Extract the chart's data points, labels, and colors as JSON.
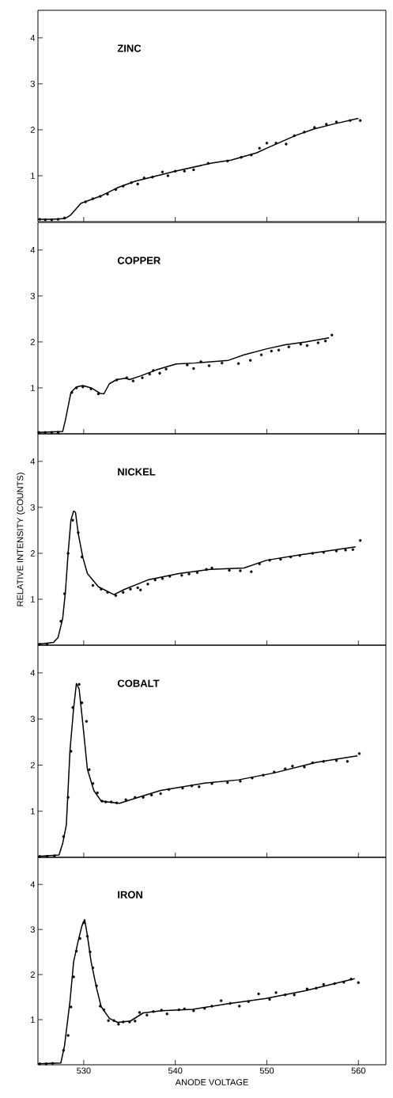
{
  "chart_data": [
    {
      "type": "line",
      "title": "ZINC",
      "xlim": [
        525,
        563
      ],
      "ylim": [
        0,
        4.6
      ],
      "xticks": [
        530,
        540,
        550,
        560
      ],
      "yticks": [
        1,
        2,
        3,
        4
      ],
      "tick_labels": "y",
      "series": [
        {
          "color": "#000000",
          "x": [
            525,
            526.5,
            528,
            528.6,
            529.7,
            532,
            533.7,
            535.6,
            540,
            544.1,
            546.1,
            548.9,
            550,
            553.2,
            555.2,
            557.4,
            560
          ],
          "values": [
            0.05,
            0.05,
            0.07,
            0.15,
            0.4,
            0.57,
            0.74,
            0.88,
            1.1,
            1.28,
            1.34,
            1.5,
            1.6,
            1.88,
            2.02,
            2.13,
            2.25
          ]
        },
        {
          "type": "scatter",
          "color": "#000000",
          "marker": "circle",
          "x": [
            525.2,
            525.8,
            526.5,
            527.2,
            527.9,
            530.2,
            531,
            531.8,
            532.6,
            533.5,
            534.3,
            535.2,
            535.9,
            536.6,
            537.5,
            538.6,
            539.2,
            540,
            541,
            542,
            543.6,
            545.7,
            547.2,
            548.3,
            549.2,
            550,
            551,
            552.1,
            553,
            554.1,
            555.2,
            556.5,
            557.6,
            559.1,
            560.2
          ],
          "values": [
            0.05,
            0.04,
            0.04,
            0.05,
            0.08,
            0.43,
            0.5,
            0.55,
            0.6,
            0.7,
            0.77,
            0.85,
            0.82,
            0.95,
            0.97,
            1.08,
            1.0,
            1.1,
            1.1,
            1.13,
            1.27,
            1.32,
            1.4,
            1.45,
            1.6,
            1.71,
            1.71,
            1.69,
            1.87,
            1.95,
            2.05,
            2.12,
            2.17,
            2.2,
            2.2
          ]
        }
      ]
    },
    {
      "type": "line",
      "title": "COPPER",
      "xlim": [
        525,
        563
      ],
      "ylim": [
        0,
        4.6
      ],
      "xticks": [
        530,
        540,
        550,
        560
      ],
      "yticks": [
        1,
        2,
        3,
        4
      ],
      "tick_labels": "y",
      "series": [
        {
          "color": "#000000",
          "x": [
            525,
            527.7,
            528.0,
            528.6,
            529.2,
            529.9,
            530.8,
            531.8,
            532.2,
            532.8,
            533.6,
            534.6,
            535,
            536.2,
            537.9,
            540.1,
            542.1,
            545.8,
            547.5,
            550,
            552,
            554.2,
            556.8
          ],
          "values": [
            0.03,
            0.05,
            0.3,
            0.9,
            1.02,
            1.05,
            1.0,
            0.88,
            0.87,
            1.09,
            1.18,
            1.21,
            1.18,
            1.26,
            1.39,
            1.52,
            1.54,
            1.6,
            1.72,
            1.85,
            1.94,
            2.0,
            2.09
          ]
        },
        {
          "type": "scatter",
          "color": "#000000",
          "marker": "circle",
          "x": [
            525.1,
            525.8,
            526.5,
            527.2,
            528.7,
            529.2,
            529.9,
            530.8,
            531.6,
            533.6,
            534.7,
            535.4,
            536.4,
            537.2,
            537.6,
            538.3,
            539,
            541.3,
            542,
            542.8,
            543.7,
            545.1,
            546.9,
            548.2,
            549.4,
            550.5,
            551.3,
            552.4,
            553.7,
            554.4,
            555.6,
            556.4,
            557.1
          ],
          "values": [
            0.03,
            0.03,
            0.03,
            0.03,
            0.9,
            1.0,
            1.02,
            0.98,
            0.87,
            1.17,
            1.22,
            1.15,
            1.22,
            1.3,
            1.38,
            1.32,
            1.41,
            1.5,
            1.42,
            1.57,
            1.48,
            1.54,
            1.53,
            1.6,
            1.72,
            1.8,
            1.82,
            1.89,
            1.95,
            1.92,
            1.98,
            2.02,
            2.15
          ]
        }
      ]
    },
    {
      "type": "line",
      "title": "NICKEL",
      "ylabel": "RELATIVE INTENSITY (COUNTS)",
      "xlim": [
        525,
        563
      ],
      "ylim": [
        0,
        4.6
      ],
      "xticks": [
        530,
        540,
        550,
        560
      ],
      "yticks": [
        1,
        2,
        3,
        4
      ],
      "tick_labels": "y",
      "series": [
        {
          "color": "#000000",
          "x": [
            525,
            526.7,
            527.2,
            527.7,
            528.0,
            528.3,
            528.6,
            528.9,
            529.1,
            529.4,
            529.9,
            530.4,
            531.6,
            533.3,
            534.4,
            537,
            540.4,
            543.8,
            547.5,
            550,
            553.7,
            556.6,
            559.7
          ],
          "values": [
            0.02,
            0.06,
            0.17,
            0.58,
            1.16,
            2.02,
            2.72,
            2.92,
            2.89,
            2.43,
            1.91,
            1.56,
            1.27,
            1.1,
            1.21,
            1.42,
            1.56,
            1.65,
            1.68,
            1.85,
            1.97,
            2.05,
            2.14
          ]
        },
        {
          "type": "scatter",
          "color": "#000000",
          "marker": "circle",
          "x": [
            525.2,
            526,
            527.5,
            527.9,
            528.3,
            528.8,
            529.4,
            529.8,
            531,
            531.9,
            532.6,
            533.5,
            534.3,
            535.1,
            535.9,
            536.2,
            537,
            537.8,
            538.6,
            539.4,
            540.7,
            541.5,
            542.4,
            543.4,
            544,
            545.9,
            547.1,
            548.3,
            549.2,
            550.3,
            551.5,
            552.6,
            553.6,
            555,
            556.2,
            557.6,
            558.6,
            559.4,
            560.2
          ],
          "values": [
            0.02,
            0.02,
            0.52,
            1.12,
            2.0,
            2.72,
            2.45,
            1.92,
            1.3,
            1.22,
            1.15,
            1.08,
            1.15,
            1.22,
            1.25,
            1.2,
            1.33,
            1.42,
            1.45,
            1.5,
            1.52,
            1.55,
            1.58,
            1.65,
            1.68,
            1.63,
            1.62,
            1.6,
            1.77,
            1.85,
            1.87,
            1.92,
            1.95,
            2.0,
            2.02,
            2.05,
            2.07,
            2.08,
            2.28
          ]
        }
      ]
    },
    {
      "type": "line",
      "title": "COBALT",
      "xlim": [
        525,
        563
      ],
      "ylim": [
        0,
        4.6
      ],
      "xticks": [
        530,
        540,
        550,
        560
      ],
      "yticks": [
        1,
        2,
        3,
        4
      ],
      "tick_labels": "y",
      "series": [
        {
          "color": "#000000",
          "x": [
            525,
            527.3,
            527.7,
            528.1,
            528.5,
            528.9,
            529.2,
            529.5,
            529.9,
            530.4,
            531.1,
            531.9,
            533.9,
            535.6,
            538.4,
            543.2,
            546.9,
            550.8,
            555.4,
            559.9
          ],
          "values": [
            0.02,
            0.05,
            0.3,
            0.7,
            2.32,
            3.24,
            3.77,
            3.65,
            2.9,
            1.91,
            1.45,
            1.22,
            1.17,
            1.28,
            1.45,
            1.61,
            1.68,
            1.83,
            2.06,
            2.2
          ]
        },
        {
          "type": "scatter",
          "color": "#000000",
          "marker": "circle",
          "x": [
            525.2,
            526,
            526.8,
            527.8,
            528.3,
            528.6,
            528.8,
            529.5,
            529.8,
            530.3,
            530.6,
            531,
            531.5,
            532,
            532.4,
            533,
            533.6,
            534.6,
            535.6,
            536.5,
            537.4,
            538.4,
            539.3,
            540.8,
            541.8,
            542.6,
            544,
            545.7,
            547.1,
            548.4,
            549.6,
            550.8,
            552,
            552.8,
            554.1,
            555,
            556.2,
            557.6,
            558.8,
            560.1
          ],
          "values": [
            0.02,
            0.02,
            0.03,
            0.45,
            1.3,
            2.3,
            3.25,
            3.75,
            3.35,
            2.95,
            1.9,
            1.6,
            1.4,
            1.22,
            1.2,
            1.2,
            1.18,
            1.25,
            1.3,
            1.3,
            1.35,
            1.38,
            1.47,
            1.5,
            1.55,
            1.53,
            1.6,
            1.62,
            1.65,
            1.72,
            1.78,
            1.85,
            1.92,
            1.98,
            1.96,
            2.05,
            2.08,
            2.1,
            2.08,
            2.25
          ]
        }
      ]
    },
    {
      "type": "line",
      "title": "IRON",
      "xlabel": "ANODE VOLTAGE",
      "xlim": [
        525,
        563
      ],
      "ylim": [
        0,
        4.6
      ],
      "xticks": [
        530,
        540,
        550,
        560
      ],
      "yticks": [
        1,
        2,
        3,
        4
      ],
      "series": [
        {
          "color": "#000000",
          "x": [
            525,
            527.5,
            527.9,
            528.5,
            528.9,
            529.4,
            529.8,
            530.1,
            530.4,
            530.8,
            531.4,
            531.9,
            532.8,
            533.7,
            535.1,
            536.5,
            538.5,
            541.9,
            545.7,
            549.9,
            554.2,
            559.6
          ],
          "values": [
            0.02,
            0.04,
            0.42,
            1.41,
            2.29,
            2.75,
            3.08,
            3.22,
            2.87,
            2.29,
            1.7,
            1.29,
            1.03,
            0.94,
            0.97,
            1.15,
            1.2,
            1.23,
            1.35,
            1.47,
            1.64,
            1.91
          ]
        },
        {
          "type": "scatter",
          "color": "#000000",
          "marker": "circle",
          "x": [
            525.2,
            525.9,
            526.6,
            527.8,
            528.3,
            528.6,
            528.9,
            529.2,
            529.6,
            530,
            530.4,
            530.7,
            531,
            531.4,
            531.8,
            532.2,
            532.7,
            533.3,
            533.8,
            534.3,
            535,
            535.6,
            536.1,
            536.9,
            537.6,
            538.5,
            539.1,
            540.4,
            541,
            542,
            543.2,
            544,
            545,
            546,
            547,
            548,
            549.1,
            550.3,
            551,
            552,
            553,
            554.4,
            555.4,
            556.2,
            557.4,
            558.4,
            559.2,
            560
          ],
          "values": [
            0.02,
            0.02,
            0.03,
            0.32,
            0.65,
            1.28,
            1.95,
            2.52,
            2.8,
            3.15,
            2.85,
            2.5,
            2.15,
            1.75,
            1.3,
            1.22,
            0.98,
            0.98,
            0.9,
            0.95,
            0.95,
            0.97,
            1.16,
            1.1,
            1.18,
            1.21,
            1.13,
            1.22,
            1.24,
            1.2,
            1.25,
            1.3,
            1.42,
            1.36,
            1.3,
            1.4,
            1.57,
            1.45,
            1.6,
            1.55,
            1.55,
            1.68,
            1.7,
            1.78,
            1.8,
            1.83,
            1.9,
            1.82
          ]
        }
      ]
    }
  ]
}
